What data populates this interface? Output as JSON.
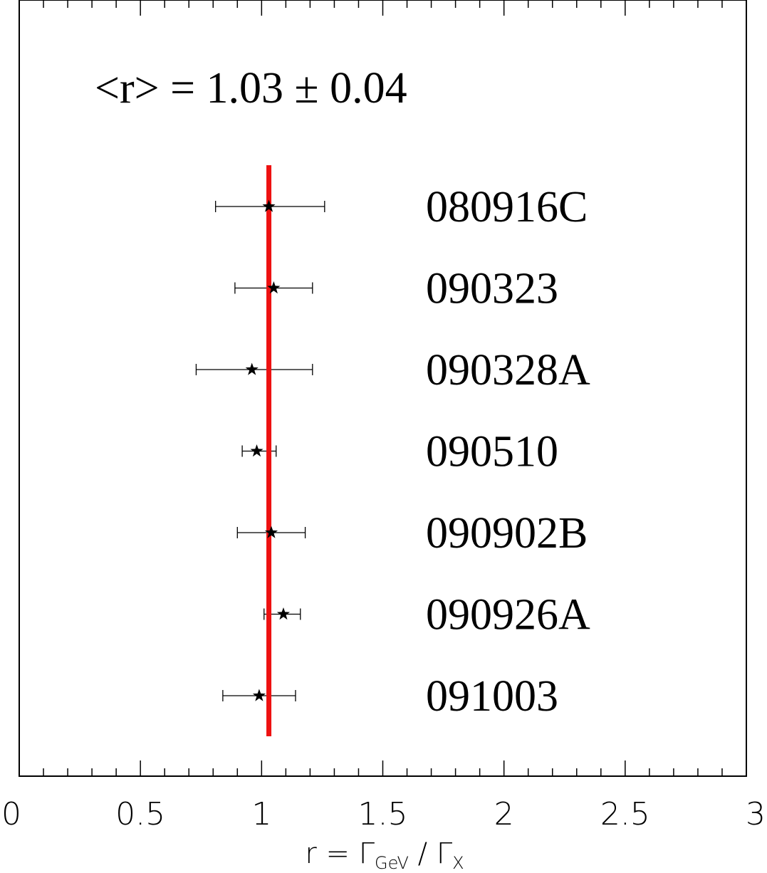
{
  "chart_data": {
    "type": "scatter",
    "annotation": "<r> = 1.03 ± 0.04",
    "mean": 1.03,
    "mean_line_color": "#ee1111",
    "marker": "star-icon",
    "xlim": [
      0,
      3
    ],
    "x_ticks": [
      {
        "value": 0,
        "label": "0"
      },
      {
        "value": 0.5,
        "label": "0.5"
      },
      {
        "value": 1,
        "label": "1"
      },
      {
        "value": 1.5,
        "label": "1.5"
      },
      {
        "value": 2,
        "label": "2"
      },
      {
        "value": 2.5,
        "label": "2.5"
      },
      {
        "value": 3,
        "label": "3"
      }
    ],
    "xlabel": {
      "main": "r = Γ",
      "sub1": "GeV",
      "mid": " / Γ",
      "sub2": "X"
    },
    "grid": false,
    "points": [
      {
        "label": "080916C",
        "x": 1.03,
        "xerr_low": 0.81,
        "xerr_high": 1.26
      },
      {
        "label": "090323",
        "x": 1.05,
        "xerr_low": 0.89,
        "xerr_high": 1.21
      },
      {
        "label": "090328A",
        "x": 0.96,
        "xerr_low": 0.73,
        "xerr_high": 1.21
      },
      {
        "label": "090510",
        "x": 0.98,
        "xerr_low": 0.92,
        "xerr_high": 1.06
      },
      {
        "label": "090902B",
        "x": 1.04,
        "xerr_low": 0.9,
        "xerr_high": 1.18
      },
      {
        "label": "090926A",
        "x": 1.09,
        "xerr_low": 1.01,
        "xerr_high": 1.16
      },
      {
        "label": "091003",
        "x": 0.99,
        "xerr_low": 0.84,
        "xerr_high": 1.14
      }
    ]
  }
}
